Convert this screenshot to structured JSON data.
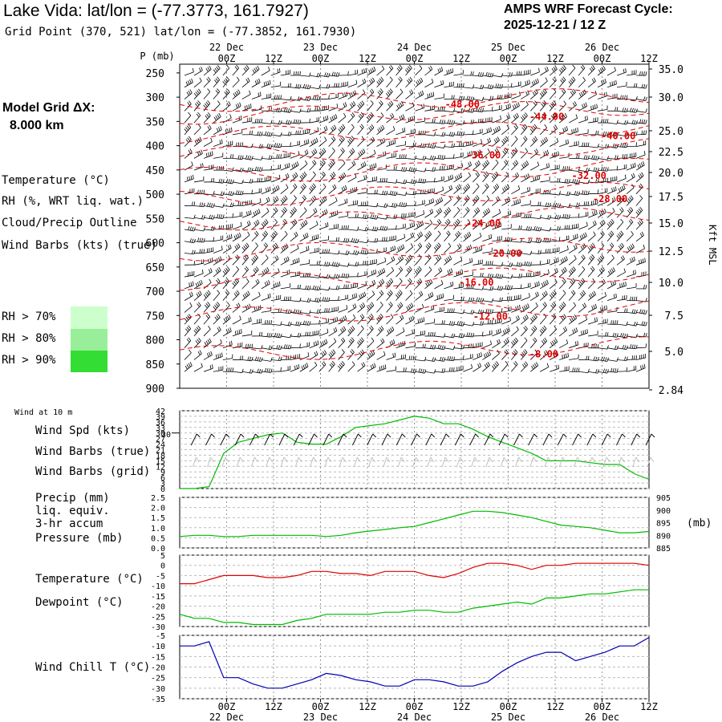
{
  "header": {
    "title": "Lake Vida:  lat/lon = (-77.3773, 161.7927)",
    "subtitle": "Grid Point (370, 521) lat/lon = (-77.3852, 161.7930)",
    "cycle_line1": "AMPS WRF Forecast Cycle:",
    "cycle_line2": "2025-12-21 / 12  Z",
    "grid_line1": "Model Grid ΔX:",
    "grid_line2": "8.000 km"
  },
  "legend_main": {
    "temperature": "Temperature (°C)",
    "rh": "RH (%, WRT liq. wat.)",
    "cloud": "Cloud/Precip Outline",
    "wind": "Wind Barbs (kts) (true)",
    "rh_bins": [
      {
        "label": "RH > 70%",
        "color": "#ccffcc"
      },
      {
        "label": "RH > 80%",
        "color": "#99ee99"
      },
      {
        "label": "RH > 90%",
        "color": "#33dd33"
      }
    ]
  },
  "colors": {
    "temp": "#e00000",
    "rh": "#00bb00",
    "cloud": "#7030a0",
    "windchill": "#0000b0",
    "wind_grid": "#bbbbbb"
  },
  "time_axis": {
    "top_labels": [
      "00Z",
      "12Z",
      "00Z",
      "12Z",
      "00Z",
      "12Z",
      "00Z",
      "12Z",
      "00Z",
      "12Z"
    ],
    "day_labels": [
      "22 Dec",
      "23 Dec",
      "24 Dec",
      "25 Dec",
      "26 Dec"
    ],
    "bottom_labels": [
      "00Z",
      "12Z",
      "00Z",
      "12Z",
      "00Z",
      "12Z",
      "00Z",
      "12Z",
      "00Z",
      "12Z"
    ]
  },
  "chart_data": [
    {
      "type": "cross-section",
      "ylabel": "P (mb)",
      "pressure_levels": [
        250,
        300,
        350,
        400,
        450,
        500,
        550,
        600,
        650,
        700,
        750,
        800,
        850,
        900
      ],
      "height_labels": [
        "35.0",
        "30.0",
        "25.0",
        "22.5",
        "20.0",
        "17.5",
        "15.0",
        "12.5",
        "10.0",
        "7.5",
        "5.0",
        "2.84"
      ],
      "right_axis_label": "Kft MSL",
      "isotherms": [
        {
          "label": "-48.00",
          "t": 24,
          "p": 315
        },
        {
          "label": "-44.00",
          "t": 36,
          "p": 340
        },
        {
          "label": "-40.00",
          "t": 48,
          "p": 380
        },
        {
          "label": "-36.00",
          "t": 27,
          "p": 420
        },
        {
          "label": "-32.00",
          "t": 42,
          "p": 462
        },
        {
          "label": "-28.00",
          "t": 45,
          "p": 510
        },
        {
          "label": "-24.00",
          "t": 27,
          "p": 560
        },
        {
          "label": "-20.00",
          "t": 30,
          "p": 622
        },
        {
          "label": "-16.00",
          "t": 26,
          "p": 682
        },
        {
          "label": "-12.00",
          "t": 28,
          "p": 752
        },
        {
          "label": "-8.00",
          "t": 36,
          "p": 830
        }
      ]
    },
    {
      "type": "line",
      "title": "Wind at 10 m",
      "series": [
        {
          "name": "Wind Spd (kts)",
          "color": "#00bb00",
          "values": [
            0,
            0,
            1,
            19,
            25,
            27,
            29,
            30,
            25,
            24,
            24,
            28,
            33,
            34,
            35,
            37,
            39,
            38,
            35,
            35,
            32,
            28,
            25,
            22,
            19,
            15,
            15,
            15,
            14,
            13,
            13,
            8,
            5
          ]
        }
      ],
      "legend": [
        "Wind Spd (kts)",
        "Wind Barbs (true)",
        "Wind Barbs (grid)"
      ],
      "ylim": [
        0,
        42
      ],
      "yticks": [
        "42",
        "39",
        "36",
        "33",
        "30",
        "27",
        "24",
        "21",
        "18",
        "15",
        "12",
        "9",
        "6",
        "3",
        "0"
      ],
      "marker_value": "30"
    },
    {
      "type": "line",
      "legend": [
        "Precip (mm)",
        "liq. equiv.",
        "3-hr accum",
        "Pressure (mb)"
      ],
      "ylim": [
        0,
        2.5
      ],
      "yticks_left": [
        "2.5",
        "2.0",
        "1.5",
        "1.0",
        "0.5",
        "0.0"
      ],
      "yticks_right": [
        "905",
        "900",
        "895",
        "890",
        "885"
      ],
      "right_unit": "(mb)",
      "series": [
        {
          "name": "Pressure (mb)",
          "color": "#00bb00",
          "values": [
            889.5,
            890,
            890,
            889.5,
            889.5,
            890,
            890,
            890,
            890,
            890,
            889.5,
            890,
            891,
            891.7,
            892.3,
            893,
            893.5,
            895,
            896.5,
            898,
            899.5,
            899.5,
            899,
            898,
            897,
            895.5,
            894,
            893.5,
            893,
            892,
            891,
            891,
            891.5
          ]
        },
        {
          "name": "Precip (mm)",
          "color": "#7030a0",
          "values": []
        }
      ]
    },
    {
      "type": "line",
      "legend": [
        "Temperature (°C)",
        "Dewpoint (°C)"
      ],
      "ylim": [
        -30,
        5
      ],
      "yticks": [
        "5",
        "0",
        "-5",
        "-10",
        "-15",
        "-20",
        "-25",
        "-30"
      ],
      "series": [
        {
          "name": "Temperature (°C)",
          "color": "#e00000",
          "values": [
            -9,
            -9,
            -7,
            -5,
            -5,
            -5,
            -6,
            -6,
            -5,
            -3,
            -3,
            -4,
            -4,
            -5,
            -3,
            -3,
            -3,
            -5,
            -6,
            -4,
            -1,
            1,
            1,
            0,
            -2,
            0,
            0,
            1,
            1,
            1,
            1,
            1,
            0
          ]
        },
        {
          "name": "Dewpoint (°C)",
          "color": "#00bb00",
          "values": [
            -24,
            -26,
            -26,
            -28,
            -28,
            -29,
            -29,
            -29,
            -27,
            -26,
            -24,
            -24,
            -24,
            -24,
            -23,
            -23,
            -22,
            -22,
            -23,
            -23,
            -21,
            -20,
            -19,
            -18,
            -19,
            -16,
            -16,
            -15,
            -14,
            -14,
            -13,
            -12,
            -12
          ]
        }
      ]
    },
    {
      "type": "line",
      "legend": [
        "Wind Chill T (°C)"
      ],
      "ylim": [
        -35,
        -5
      ],
      "yticks": [
        "-5",
        "-10",
        "-15",
        "-20",
        "-25",
        "-30",
        "-35"
      ],
      "series": [
        {
          "name": "Wind Chill T (°C)",
          "color": "#0000b0",
          "values": [
            -10,
            -10,
            -8,
            -25,
            -25,
            -28,
            -30,
            -30,
            -28,
            -26,
            -23,
            -24,
            -26,
            -27,
            -29,
            -29,
            -26,
            -26,
            -27,
            -29,
            -29,
            -27,
            -22,
            -18,
            -15,
            -13,
            -13,
            -17,
            -15,
            -13,
            -10,
            -10,
            -6
          ]
        }
      ]
    }
  ]
}
